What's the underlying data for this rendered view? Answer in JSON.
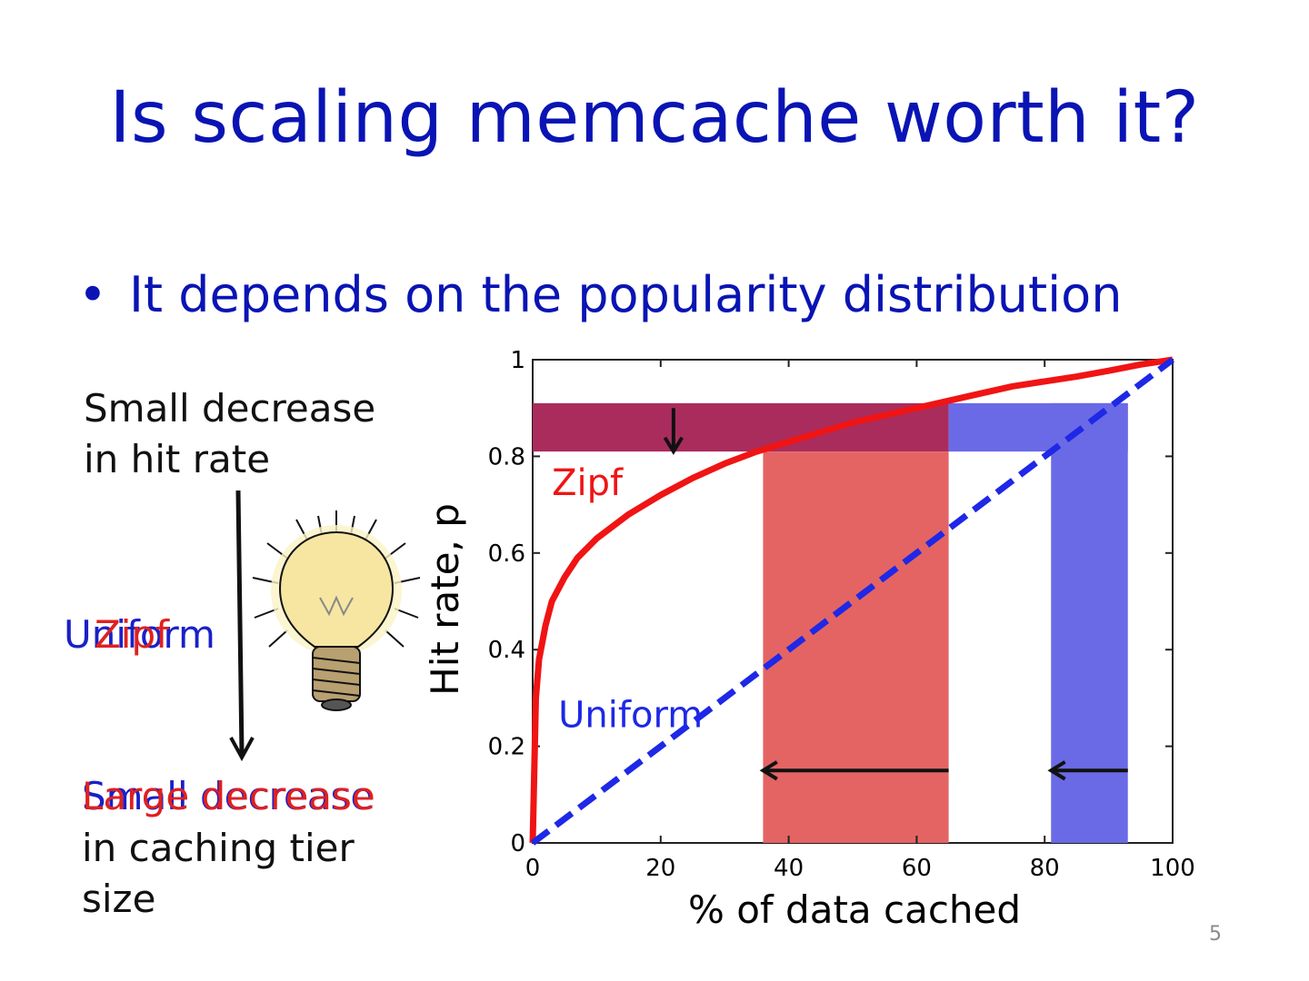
{
  "slide": {
    "title": "Is scaling memcache worth it?",
    "bullet": "It depends on the popularity distribution",
    "note_top_line1": "Small decrease",
    "note_top_line2": "in hit rate",
    "middle_label_uniform": "Uniform",
    "middle_label_zipf": "Zipf",
    "note_bottom_small": "Small decrease",
    "note_bottom_large": "Large decrease",
    "note_bottom_line2": "in caching tier",
    "note_bottom_line3": "size",
    "slide_number": "5"
  },
  "colors": {
    "title": "#0a14b4",
    "zipf": "#f01414",
    "uniform": "#1e28e6",
    "zipf_band": "#e46464",
    "uniform_band": "#6a6ae6",
    "overlap_band": "#a8285a"
  },
  "chart_data": {
    "type": "line",
    "xlabel": "% of data cached",
    "ylabel": "Hit rate, p",
    "xlim": [
      0,
      100
    ],
    "ylim": [
      0,
      1
    ],
    "x_ticks": [
      0,
      20,
      40,
      60,
      80,
      100
    ],
    "y_ticks": [
      0,
      0.2,
      0.4,
      0.6,
      0.8,
      1
    ],
    "x_tick_labels": [
      "0",
      "20",
      "40",
      "60",
      "80",
      "100"
    ],
    "y_tick_labels": [
      "0",
      "0.2",
      "0.4",
      "0.6",
      "0.8",
      "1"
    ],
    "series": [
      {
        "name": "Zipf",
        "style": "solid",
        "x": [
          0,
          0.5,
          1,
          2,
          3,
          5,
          7,
          10,
          15,
          20,
          25,
          30,
          35,
          40,
          45,
          50,
          55,
          60,
          65,
          70,
          75,
          80,
          85,
          90,
          95,
          100
        ],
        "y": [
          0,
          0.3,
          0.38,
          0.45,
          0.5,
          0.55,
          0.59,
          0.63,
          0.68,
          0.72,
          0.755,
          0.785,
          0.81,
          0.83,
          0.85,
          0.87,
          0.885,
          0.9,
          0.915,
          0.93,
          0.945,
          0.955,
          0.965,
          0.977,
          0.99,
          1.0
        ]
      },
      {
        "name": "Uniform",
        "style": "dashed",
        "x": [
          0,
          100
        ],
        "y": [
          0,
          1
        ]
      }
    ],
    "bands": [
      {
        "name": "hit-rate-band",
        "orientation": "horizontal",
        "y_range": [
          0.81,
          0.91
        ],
        "x_range": [
          0,
          65
        ]
      },
      {
        "name": "uniform-hit-rate-band",
        "orientation": "horizontal",
        "y_range": [
          0.81,
          0.91
        ],
        "x_range": [
          65,
          93
        ]
      },
      {
        "name": "zipf-size-band",
        "orientation": "vertical",
        "x_range": [
          36,
          65
        ],
        "y_range": [
          0,
          0.81
        ]
      },
      {
        "name": "uniform-size-band",
        "orientation": "vertical",
        "x_range": [
          81,
          93
        ],
        "y_range": [
          0,
          0.91
        ]
      }
    ],
    "arrows": [
      {
        "name": "hit-rate-arrow",
        "from": [
          22,
          0.9
        ],
        "to": [
          22,
          0.81
        ]
      },
      {
        "name": "zipf-size-arrow",
        "from": [
          65,
          0.15
        ],
        "to": [
          36,
          0.15
        ]
      },
      {
        "name": "uniform-size-arrow",
        "from": [
          93,
          0.15
        ],
        "to": [
          81,
          0.15
        ]
      }
    ],
    "annotations": [
      {
        "text": "Zipf",
        "x": 3,
        "y": 0.72
      },
      {
        "text": "Uniform",
        "x": 4,
        "y": 0.24
      }
    ]
  }
}
